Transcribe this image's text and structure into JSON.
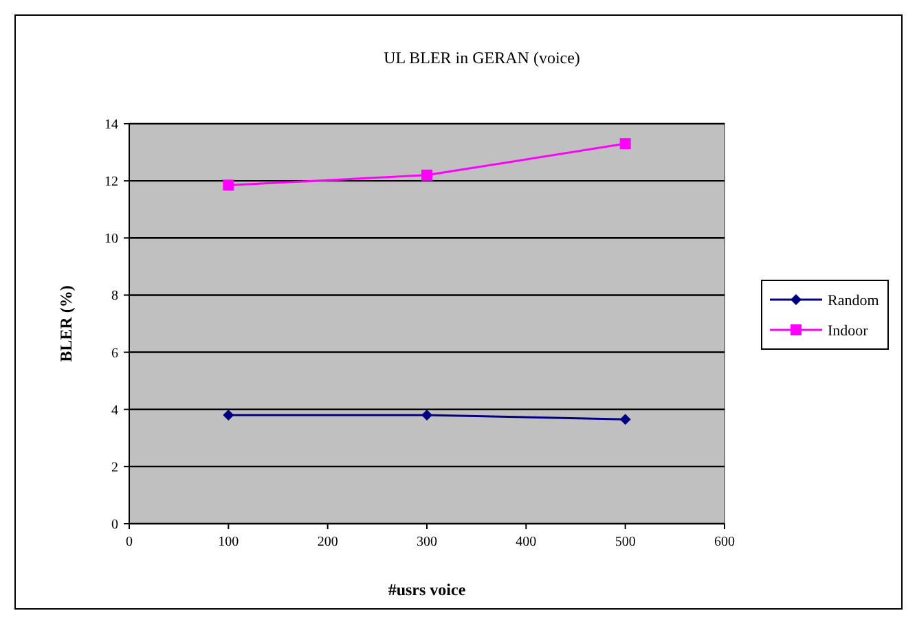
{
  "chart_data": {
    "type": "line",
    "title": "UL BLER in GERAN (voice)",
    "xlabel": "#usrs voice",
    "ylabel": "BLER (%)",
    "x": [
      100,
      300,
      500
    ],
    "xlim": [
      0,
      600
    ],
    "xticks": [
      0,
      100,
      200,
      300,
      400,
      500,
      600
    ],
    "ylim": [
      0,
      14
    ],
    "yticks": [
      0,
      2,
      4,
      6,
      8,
      10,
      12,
      14
    ],
    "grid": "y",
    "legend": "right",
    "series": [
      {
        "name": "Random",
        "color": "#000080",
        "values": [
          3.8,
          3.8,
          3.65
        ],
        "marker": "diamond"
      },
      {
        "name": "Indoor",
        "color": "#ff00ff",
        "values": [
          11.85,
          12.2,
          13.3
        ],
        "marker": "square"
      }
    ]
  }
}
